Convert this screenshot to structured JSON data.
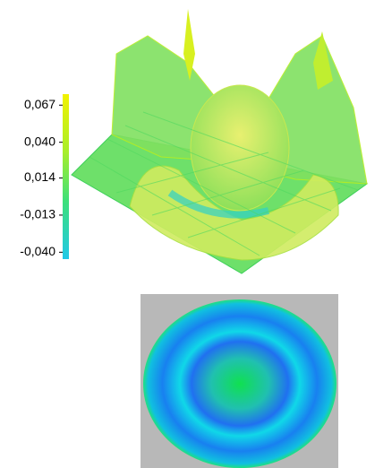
{
  "colorbar": {
    "lim": [
      -0.045,
      0.075
    ],
    "ticks": [
      {
        "value": 0.067,
        "label": "0,067"
      },
      {
        "value": 0.04,
        "label": "0,040"
      },
      {
        "value": 0.014,
        "label": "0,014"
      },
      {
        "value": -0.013,
        "label": "-0,013"
      },
      {
        "value": -0.04,
        "label": "-0,040"
      }
    ]
  }
}
